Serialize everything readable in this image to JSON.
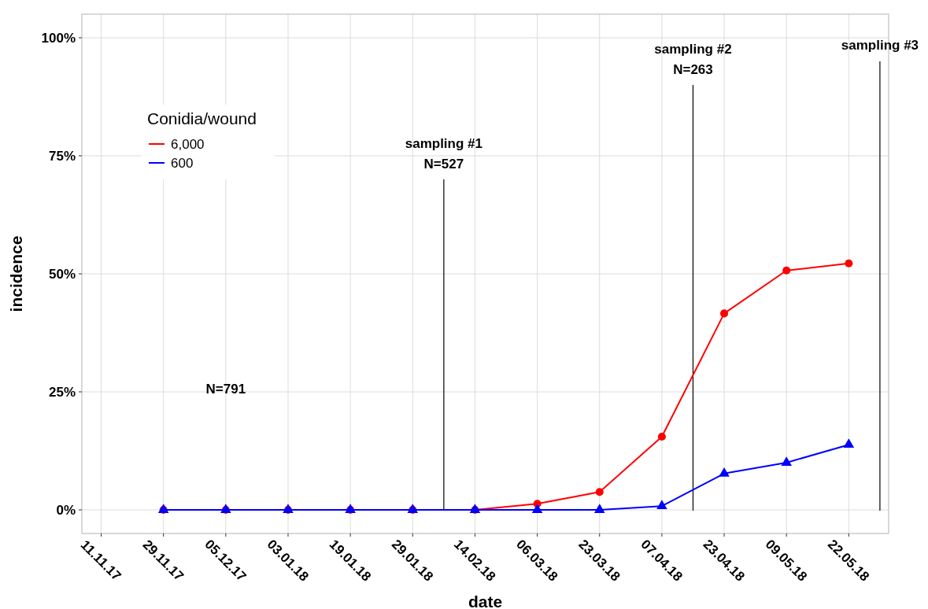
{
  "chart_data": {
    "type": "line",
    "xlabel": "date",
    "ylabel": "incidence",
    "legend_title": "Conidia/wound",
    "categories": [
      "11.11.17",
      "29.11.17",
      "05.12.17",
      "03.01.18",
      "19.01.18",
      "29.01.18",
      "14.02.18",
      "06.03.18",
      "23.03.18",
      "07.04.18",
      "23.04.18",
      "09.05.18",
      "22.05.18"
    ],
    "ylim": [
      -5,
      105
    ],
    "yticks": [
      {
        "value": 0,
        "label": "0%"
      },
      {
        "value": 25,
        "label": "25%"
      },
      {
        "value": 50,
        "label": "50%"
      },
      {
        "value": 75,
        "label": "75%"
      },
      {
        "value": 100,
        "label": "100%"
      }
    ],
    "series": [
      {
        "name": "6,000",
        "color": "#ff0000",
        "marker": "circle",
        "values": [
          null,
          0,
          0,
          0,
          0,
          0,
          0,
          1.3,
          3.8,
          15.5,
          41.6,
          50.7,
          52.2
        ]
      },
      {
        "name": "600",
        "color": "#0000ff",
        "marker": "triangle",
        "values": [
          null,
          0,
          0,
          0,
          0,
          0,
          0,
          0,
          0,
          0.8,
          7.7,
          10,
          13.8
        ]
      }
    ],
    "annotations": [
      "sampling #1",
      "N=527",
      "sampling #2",
      "N=263",
      "sampling #3",
      "N=791"
    ],
    "grid": true,
    "legend": "top left",
    "line_style": "solid"
  }
}
